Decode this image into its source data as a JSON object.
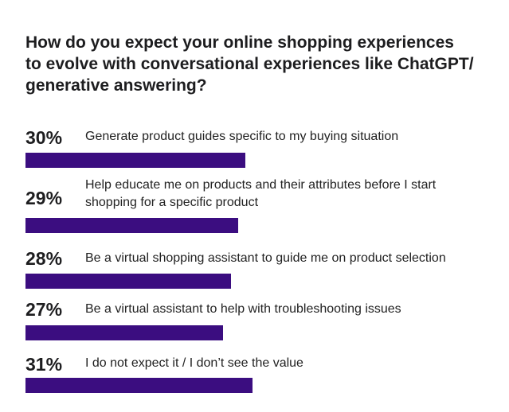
{
  "chart_data": {
    "type": "bar",
    "title": "How do you expect your online shopping experiences to evolve with conversational experiences like ChatGPT/ generative answering?",
    "title_lines": [
      "How do you expect your online shopping experiences",
      "to evolve with conversational experiences like ChatGPT/",
      "generative answering?"
    ],
    "orientation": "horizontal",
    "bar_color": "#3b0d80",
    "xlim": [
      0,
      100
    ],
    "categories": [
      "Generate product guides specific to my buying situation",
      "Help educate me on products and their attributes before I start shopping for a specific product",
      "Be a virtual shopping assistant to guide me on product selection",
      "Be a virtual assistant to help with troubleshooting issues",
      "I do not expect it / I don’t see the value"
    ],
    "label_lines": [
      [
        "Generate product guides specific to my buying situation"
      ],
      [
        "Help educate me on products and their attributes before I start",
        "shopping for a specific product"
      ],
      [
        "Be a virtual shopping assistant to guide me on product selection"
      ],
      [
        "Be a virtual assistant to help with troubleshooting issues"
      ],
      [
        "I do not expect it / I don’t see the value"
      ]
    ],
    "values": [
      30,
      29,
      28,
      27,
      31
    ],
    "value_labels": [
      "30%",
      "29%",
      "28%",
      "27%",
      "31%"
    ]
  }
}
